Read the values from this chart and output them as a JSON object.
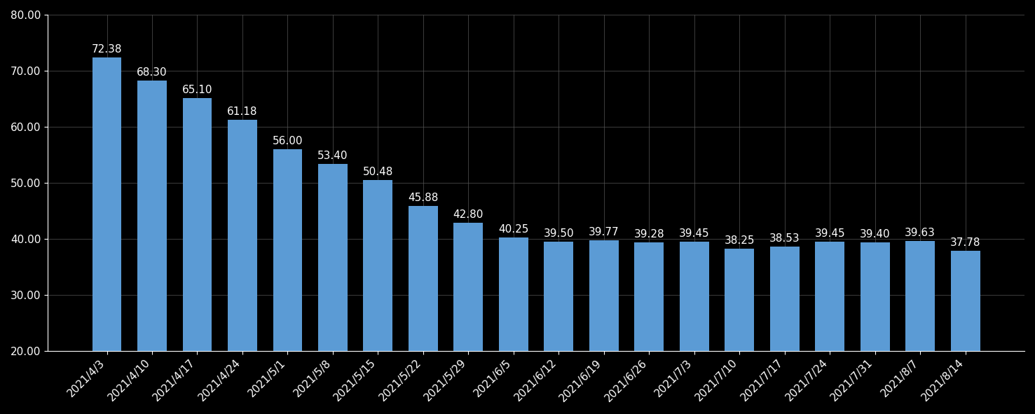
{
  "categories": [
    "2021/4/3",
    "2021/4/10",
    "2021/4/17",
    "2021/4/24",
    "2021/5/1",
    "2021/5/8",
    "2021/5/15",
    "2021/5/22",
    "2021/5/29",
    "2021/6/5",
    "2021/6/12",
    "2021/6/19",
    "2021/6/26",
    "2021/7/3",
    "2021/7/10",
    "2021/7/17",
    "2021/7/24",
    "2021/7/31",
    "2021/8/7",
    "2021/8/14"
  ],
  "values": [
    72.38,
    68.3,
    65.1,
    61.18,
    56.0,
    53.4,
    50.48,
    45.88,
    42.8,
    40.25,
    39.5,
    39.77,
    39.28,
    39.45,
    38.25,
    38.53,
    39.45,
    39.4,
    39.63,
    37.78
  ],
  "bar_color": "#5B9BD5",
  "background_color": "#000000",
  "text_color": "#ffffff",
  "grid_color": "#555555",
  "ylim_min": 20.0,
  "ylim_max": 80.0,
  "bar_bottom": 20.0,
  "yticks": [
    20.0,
    30.0,
    40.0,
    50.0,
    60.0,
    70.0,
    80.0
  ],
  "label_fontsize": 11,
  "tick_fontsize": 11
}
